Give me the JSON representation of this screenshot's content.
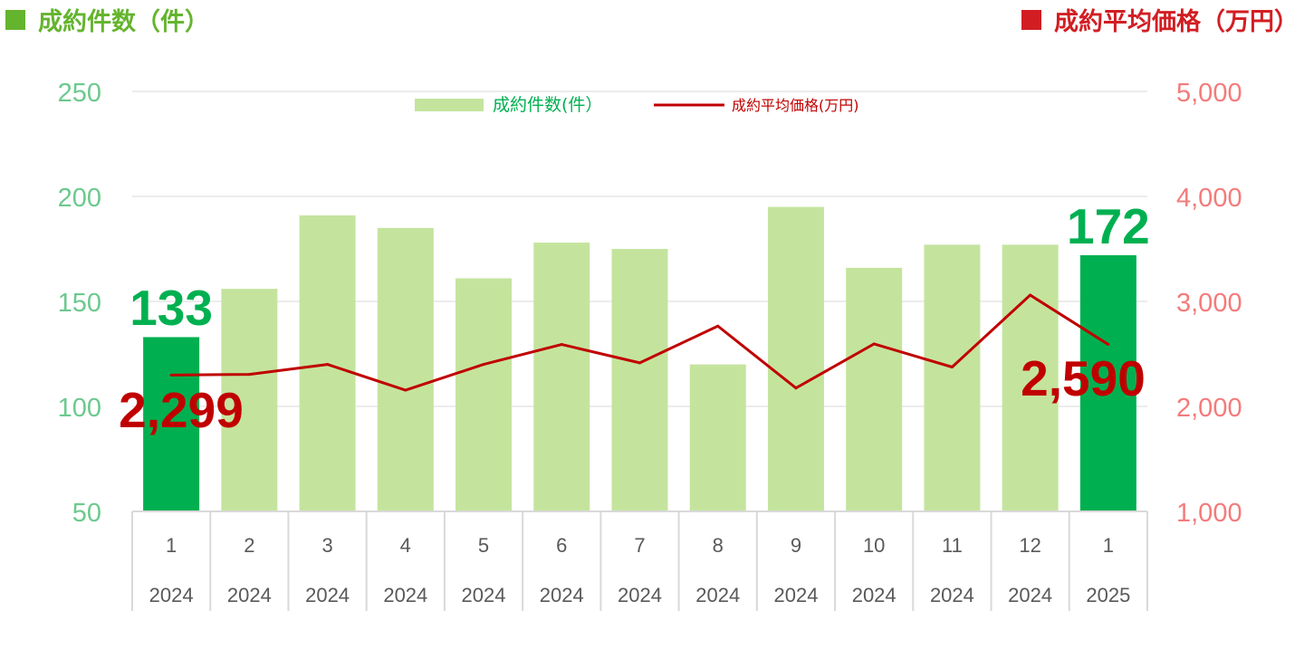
{
  "header": {
    "left_label": "成約件数（件）",
    "right_label": "成約平均価格（万円）"
  },
  "colors": {
    "bar": "#c4e49e",
    "bar_highlight": "#00b050",
    "line": "#c00000",
    "left_axis_text": "#6cc98e",
    "right_axis_text": "#f47b7b",
    "header_left": "#64b42d",
    "header_right": "#d21e23",
    "grid": "#d9d9d9",
    "callout_count": "#00b050",
    "callout_price": "#c00000"
  },
  "chart_data": {
    "type": "bar",
    "categories": [
      {
        "month": "1",
        "year": "2024"
      },
      {
        "month": "2",
        "year": "2024"
      },
      {
        "month": "3",
        "year": "2024"
      },
      {
        "month": "4",
        "year": "2024"
      },
      {
        "month": "5",
        "year": "2024"
      },
      {
        "month": "6",
        "year": "2024"
      },
      {
        "month": "7",
        "year": "2024"
      },
      {
        "month": "8",
        "year": "2024"
      },
      {
        "month": "9",
        "year": "2024"
      },
      {
        "month": "10",
        "year": "2024"
      },
      {
        "month": "11",
        "year": "2024"
      },
      {
        "month": "12",
        "year": "2024"
      },
      {
        "month": "1",
        "year": "2025"
      }
    ],
    "series": [
      {
        "name": "成約件数(件）",
        "type": "bar",
        "axis": "left",
        "values": [
          133,
          156,
          191,
          185,
          161,
          178,
          175,
          120,
          195,
          166,
          177,
          177,
          172
        ],
        "highlight_indices": [
          0,
          12
        ]
      },
      {
        "name": "成約平均価格(万円)",
        "type": "line",
        "axis": "right",
        "values": [
          2299,
          2305,
          2400,
          2155,
          2400,
          2590,
          2415,
          2765,
          2175,
          2595,
          2375,
          3060,
          2590
        ]
      }
    ],
    "left_axis": {
      "min": 50,
      "max": 250,
      "ticks": [
        "50",
        "100",
        "150",
        "200",
        "250"
      ]
    },
    "right_axis": {
      "min": 1000,
      "max": 5000,
      "ticks": [
        "1,000",
        "2,000",
        "3,000",
        "4,000",
        "5,000"
      ]
    },
    "grid": true,
    "legend_position": "top-center",
    "callouts": {
      "first_count": "133",
      "last_count": "172",
      "first_price": "2,299",
      "last_price": "2,590"
    }
  }
}
